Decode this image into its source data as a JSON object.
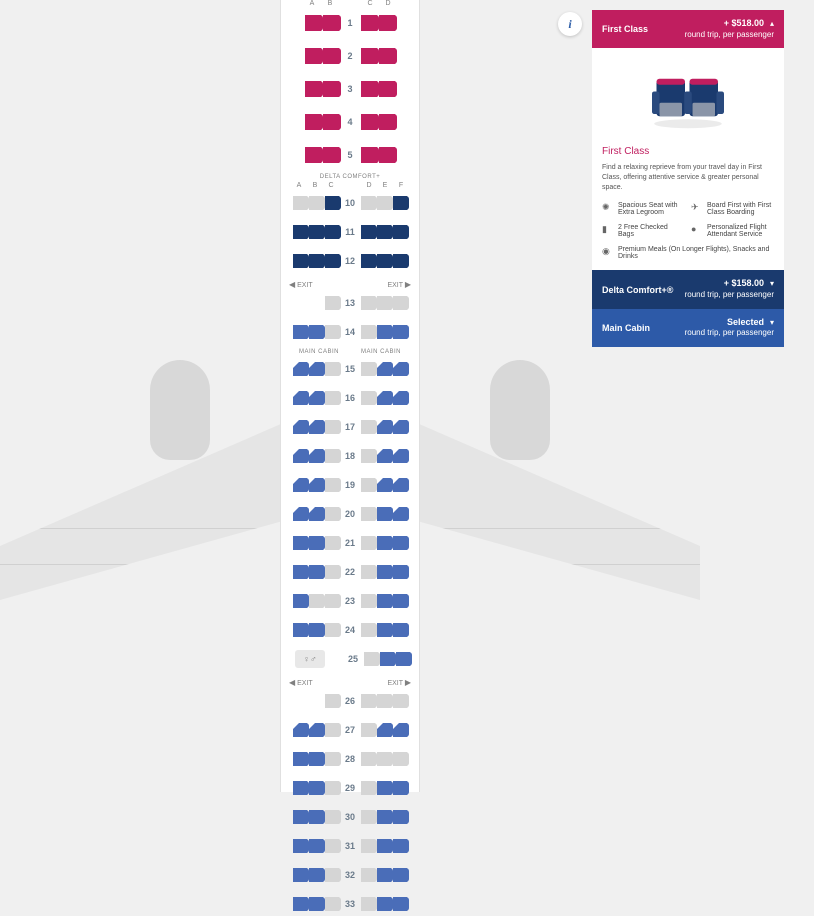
{
  "info_icon": "i",
  "fc": {
    "header_title": "First Class",
    "price_amt": "+ $518.00",
    "price_sub": "round trip, per passenger",
    "body_title": "First Class",
    "body_desc": "Find a relaxing reprieve from your travel day in First Class, offering attentive service & greater personal space.",
    "features": [
      "Spacious Seat with Extra Legroom",
      "Board First with First Class Boarding",
      "2 Free Checked Bags",
      "Personalized Flight Attendant Service",
      "Premium Meals (On Longer Flights), Snacks and Drinks"
    ]
  },
  "dc": {
    "header_title": "Delta Comfort+®",
    "price_amt": "+ $158.00",
    "price_sub": "round trip, per passenger"
  },
  "mc": {
    "header_title": "Main Cabin",
    "price_amt": "Selected",
    "price_sub": "round trip, per passenger"
  },
  "labels": {
    "exit": "EXIT",
    "delta_comfort": "DELTA COMFORT+",
    "main_cabin": "MAIN CABIN",
    "cols_fc": [
      "A",
      "B",
      "C",
      "D"
    ],
    "cols_ec": [
      "A",
      "B",
      "C",
      "D",
      "E",
      "F"
    ]
  },
  "colors": {
    "fc": "#c01e5f",
    "navy": "#1a3a6e",
    "blue": "#4a6db8",
    "grey": "#d5d5d5",
    "mc_hdr": "#2d5aa8"
  },
  "seatmap": {
    "fc_rows": [
      1,
      2,
      3,
      4,
      5
    ],
    "dc_rows": [
      {
        "n": 10,
        "L": [
          "grey",
          "grey",
          "navy"
        ],
        "R": [
          "grey",
          "grey",
          "navy"
        ]
      },
      {
        "n": 11,
        "L": [
          "navy",
          "navy",
          "navy"
        ],
        "R": [
          "navy",
          "navy",
          "navy"
        ]
      },
      {
        "n": 12,
        "L": [
          "navy",
          "navy",
          "navy"
        ],
        "R": [
          "navy",
          "navy",
          "navy"
        ]
      }
    ],
    "mc_rows": [
      {
        "n": 13,
        "L": [
          "",
          "",
          "grey"
        ],
        "R": [
          "grey",
          "grey",
          "grey"
        ]
      },
      {
        "n": 14,
        "L": [
          "blue",
          "blue",
          "grey"
        ],
        "R": [
          "grey",
          "blue",
          "blue"
        ]
      },
      {
        "n": 15,
        "L": [
          "bluec",
          "bluec",
          "grey"
        ],
        "R": [
          "grey",
          "bluec",
          "bluec"
        ]
      },
      {
        "n": 16,
        "L": [
          "bluec",
          "bluec",
          "grey"
        ],
        "R": [
          "grey",
          "bluec",
          "bluec"
        ]
      },
      {
        "n": 17,
        "L": [
          "bluec",
          "bluec",
          "grey"
        ],
        "R": [
          "grey",
          "bluec",
          "bluec"
        ]
      },
      {
        "n": 18,
        "L": [
          "bluec",
          "bluec",
          "grey"
        ],
        "R": [
          "grey",
          "bluec",
          "bluec"
        ]
      },
      {
        "n": 19,
        "L": [
          "bluec",
          "bluec",
          "grey"
        ],
        "R": [
          "grey",
          "bluec",
          "bluec"
        ]
      },
      {
        "n": 20,
        "L": [
          "bluec",
          "bluec",
          "grey"
        ],
        "R": [
          "grey",
          "blue",
          "bluec"
        ]
      },
      {
        "n": 21,
        "L": [
          "blue",
          "blue",
          "grey"
        ],
        "R": [
          "grey",
          "blue",
          "blue"
        ]
      },
      {
        "n": 22,
        "L": [
          "blue",
          "blue",
          "grey"
        ],
        "R": [
          "grey",
          "blue",
          "blue"
        ]
      },
      {
        "n": 23,
        "L": [
          "blue",
          "grey",
          "grey"
        ],
        "R": [
          "grey",
          "blue",
          "blue"
        ]
      },
      {
        "n": 24,
        "L": [
          "blue",
          "blue",
          "grey"
        ],
        "R": [
          "grey",
          "blue",
          "blue"
        ]
      },
      {
        "n": 25,
        "L": [
          "lav",
          "lav",
          "lav"
        ],
        "R": [
          "grey",
          "blue",
          "blue"
        ]
      },
      {
        "n": 26,
        "L": [
          "",
          "",
          "grey"
        ],
        "R": [
          "grey",
          "grey",
          "grey"
        ]
      },
      {
        "n": 27,
        "L": [
          "bluec",
          "bluec",
          "grey"
        ],
        "R": [
          "grey",
          "bluec",
          "bluec"
        ]
      },
      {
        "n": 28,
        "L": [
          "blue",
          "blue",
          "grey"
        ],
        "R": [
          "grey",
          "grey",
          "grey"
        ]
      },
      {
        "n": 29,
        "L": [
          "blue",
          "blue",
          "grey"
        ],
        "R": [
          "grey",
          "blue",
          "blue"
        ]
      },
      {
        "n": 30,
        "L": [
          "blue",
          "blue",
          "grey"
        ],
        "R": [
          "grey",
          "blue",
          "blue"
        ]
      },
      {
        "n": 31,
        "L": [
          "blue",
          "blue",
          "grey"
        ],
        "R": [
          "grey",
          "blue",
          "blue"
        ]
      },
      {
        "n": 32,
        "L": [
          "blue",
          "blue",
          "grey"
        ],
        "R": [
          "grey",
          "blue",
          "blue"
        ]
      },
      {
        "n": 33,
        "L": [
          "blue",
          "blue",
          "grey"
        ],
        "R": [
          "grey",
          "blue",
          "blue"
        ]
      }
    ],
    "exit_after": [
      12,
      25
    ],
    "main_cabin_label_before": 15
  }
}
